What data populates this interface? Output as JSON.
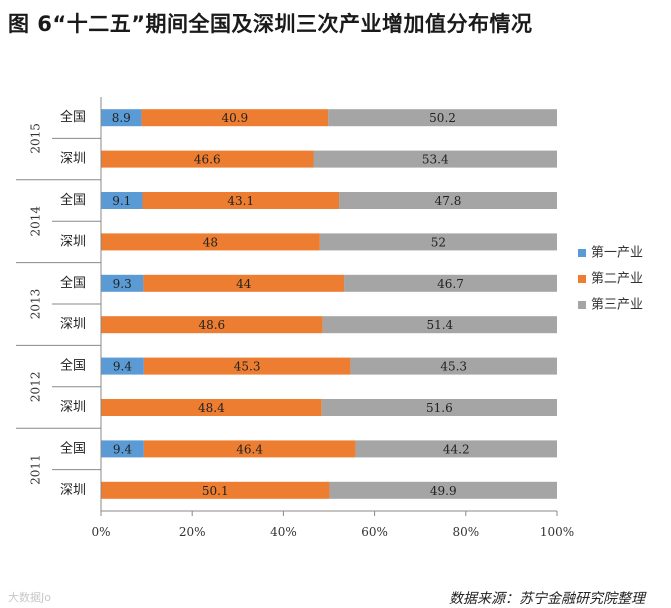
{
  "title": "图 6“十二五”期间全国及深圳三次产业增加值分布情况",
  "source": "数据来源：苏宁金融研究院整理",
  "watermark": "大数据Jo",
  "colors": {
    "primary": "#5B9BD5",
    "secondary": "#ED7D31",
    "tertiary": "#A5A5A5"
  },
  "chart_data": {
    "type": "bar",
    "orientation": "horizontal",
    "stacked": "percent",
    "title": "图 6“十二五”期间全国及深圳三次产业增加值分布情况",
    "xlim": [
      0,
      100
    ],
    "xticks": [
      "0%",
      "20%",
      "40%",
      "60%",
      "80%",
      "100%"
    ],
    "legend_position": "right",
    "legend": [
      "第一产业",
      "第二产业",
      "第三产业"
    ],
    "groups": [
      {
        "year": "2015",
        "rows": [
          {
            "label": "全国",
            "values": [
              8.9,
              40.9,
              50.2
            ]
          },
          {
            "label": "深圳",
            "values": [
              null,
              46.6,
              53.4
            ]
          }
        ]
      },
      {
        "year": "2014",
        "rows": [
          {
            "label": "全国",
            "values": [
              9.1,
              43.1,
              47.8
            ]
          },
          {
            "label": "深圳",
            "values": [
              null,
              48,
              52
            ]
          }
        ]
      },
      {
        "year": "2013",
        "rows": [
          {
            "label": "全国",
            "values": [
              9.3,
              44,
              46.7
            ]
          },
          {
            "label": "深圳",
            "values": [
              null,
              48.6,
              51.4
            ]
          }
        ]
      },
      {
        "year": "2012",
        "rows": [
          {
            "label": "全国",
            "values": [
              9.4,
              45.3,
              45.3
            ]
          },
          {
            "label": "深圳",
            "values": [
              null,
              48.4,
              51.6
            ]
          }
        ]
      },
      {
        "year": "2011",
        "rows": [
          {
            "label": "全国",
            "values": [
              9.4,
              46.4,
              44.2
            ]
          },
          {
            "label": "深圳",
            "values": [
              null,
              50.1,
              49.9
            ]
          }
        ]
      }
    ]
  }
}
